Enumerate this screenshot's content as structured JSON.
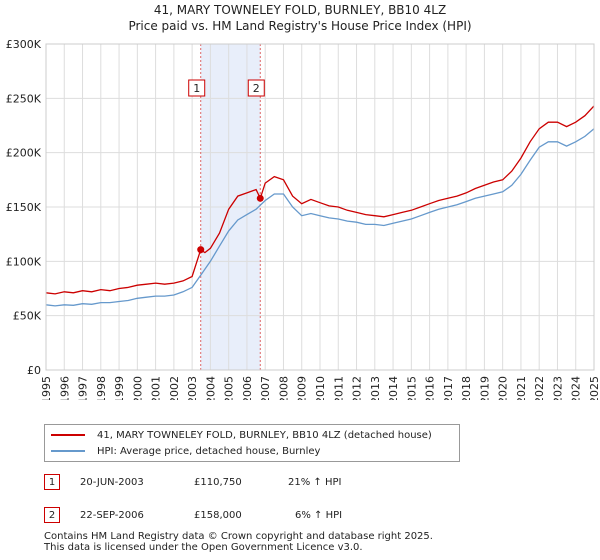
{
  "header": {
    "title_line1": "41, MARY TOWNELEY FOLD, BURNLEY, BB10 4LZ",
    "title_line2": "Price paid vs. HM Land Registry's House Price Index (HPI)"
  },
  "colors": {
    "property": "#cc0000",
    "hpi": "#6699cc",
    "shade": "#e8eefa",
    "vline": "#dd6666"
  },
  "chart_data": {
    "type": "line",
    "title": "41, MARY TOWNELEY FOLD, BURNLEY, BB10 4LZ — Price paid vs. HM Land Registry's House Price Index (HPI)",
    "xlim": [
      1995,
      2025
    ],
    "ylim": [
      0,
      300000
    ],
    "y_ticks": [
      {
        "value": 0,
        "label": "£0"
      },
      {
        "value": 50000,
        "label": "£50K"
      },
      {
        "value": 100000,
        "label": "£100K"
      },
      {
        "value": 150000,
        "label": "£150K"
      },
      {
        "value": 200000,
        "label": "£200K"
      },
      {
        "value": 250000,
        "label": "£250K"
      },
      {
        "value": 300000,
        "label": "£300K"
      }
    ],
    "x_ticks": [
      "1995",
      "1996",
      "1997",
      "1998",
      "1999",
      "2000",
      "2001",
      "2002",
      "2003",
      "2004",
      "2005",
      "2006",
      "2007",
      "2008",
      "2009",
      "2010",
      "2011",
      "2012",
      "2013",
      "2014",
      "2015",
      "2016",
      "2017",
      "2018",
      "2019",
      "2020",
      "2021",
      "2022",
      "2023",
      "2024",
      "2025"
    ],
    "shaded_period": [
      2003.47,
      2006.73
    ],
    "series": [
      {
        "name": "41, MARY TOWNELEY FOLD, BURNLEY, BB10 4LZ (detached house)",
        "x": [
          1995,
          1995.5,
          1996,
          1996.5,
          1997,
          1997.5,
          1998,
          1998.5,
          1999,
          1999.5,
          2000,
          2000.5,
          2001,
          2001.5,
          2002,
          2002.5,
          2003,
          2003.47,
          2003.7,
          2004,
          2004.5,
          2005,
          2005.5,
          2006,
          2006.5,
          2006.73,
          2007,
          2007.5,
          2008,
          2008.5,
          2009,
          2009.5,
          2010,
          2010.5,
          2011,
          2011.5,
          2012,
          2012.5,
          2013,
          2013.5,
          2014,
          2014.5,
          2015,
          2015.5,
          2016,
          2016.5,
          2017,
          2017.5,
          2018,
          2018.5,
          2019,
          2019.5,
          2020,
          2020.5,
          2021,
          2021.5,
          2022,
          2022.5,
          2023,
          2023.5,
          2024,
          2024.5,
          2025
        ],
        "y": [
          71000,
          70000,
          72000,
          71000,
          73000,
          72000,
          74000,
          73000,
          75000,
          76000,
          78000,
          79000,
          80000,
          79000,
          80000,
          82000,
          86000,
          110750,
          108000,
          112000,
          126000,
          148000,
          160000,
          163000,
          166000,
          158000,
          172000,
          178000,
          175000,
          160000,
          153000,
          157000,
          154000,
          151000,
          150000,
          147000,
          145000,
          143000,
          142000,
          141000,
          143000,
          145000,
          147000,
          150000,
          153000,
          156000,
          158000,
          160000,
          163000,
          167000,
          170000,
          173000,
          175000,
          183000,
          195000,
          210000,
          222000,
          228000,
          228000,
          224000,
          228000,
          234000,
          243000
        ]
      },
      {
        "name": "HPI: Average price, detached house, Burnley",
        "x": [
          1995,
          1995.5,
          1996,
          1996.5,
          1997,
          1997.5,
          1998,
          1998.5,
          1999,
          1999.5,
          2000,
          2000.5,
          2001,
          2001.5,
          2002,
          2002.5,
          2003,
          2003.5,
          2004,
          2004.5,
          2005,
          2005.5,
          2006,
          2006.5,
          2007,
          2007.5,
          2008,
          2008.5,
          2009,
          2009.5,
          2010,
          2010.5,
          2011,
          2011.5,
          2012,
          2012.5,
          2013,
          2013.5,
          2014,
          2014.5,
          2015,
          2015.5,
          2016,
          2016.5,
          2017,
          2017.5,
          2018,
          2018.5,
          2019,
          2019.5,
          2020,
          2020.5,
          2021,
          2021.5,
          2022,
          2022.5,
          2023,
          2023.5,
          2024,
          2024.5,
          2025
        ],
        "y": [
          60000,
          59000,
          60000,
          59500,
          61000,
          60500,
          62000,
          62000,
          63000,
          64000,
          66000,
          67000,
          68000,
          68000,
          69000,
          72000,
          76000,
          88000,
          100000,
          114000,
          128000,
          138000,
          143000,
          148000,
          156000,
          162000,
          162000,
          150000,
          142000,
          144000,
          142000,
          140000,
          139000,
          137000,
          136000,
          134000,
          134000,
          133000,
          135000,
          137000,
          139000,
          142000,
          145000,
          148000,
          150000,
          152000,
          155000,
          158000,
          160000,
          162000,
          164000,
          170000,
          180000,
          193000,
          205000,
          210000,
          210000,
          206000,
          210000,
          215000,
          222000
        ]
      }
    ],
    "annotations": [
      {
        "label": "1",
        "x": 2003.47,
        "y": 110750
      },
      {
        "label": "2",
        "x": 2006.73,
        "y": 158000
      }
    ]
  },
  "legend": {
    "property_label": "41, MARY TOWNELEY FOLD, BURNLEY, BB10 4LZ (detached house)",
    "hpi_label": "HPI: Average price, detached house, Burnley"
  },
  "transactions": [
    {
      "num": "1",
      "date": "20-JUN-2003",
      "price": "£110,750",
      "hpi": "21% ↑ HPI"
    },
    {
      "num": "2",
      "date": "22-SEP-2006",
      "price": "£158,000",
      "hpi": "6% ↑ HPI"
    }
  ],
  "footer": {
    "line1": "Contains HM Land Registry data © Crown copyright and database right 2025.",
    "line2": "This data is licensed under the Open Government Licence v3.0."
  }
}
